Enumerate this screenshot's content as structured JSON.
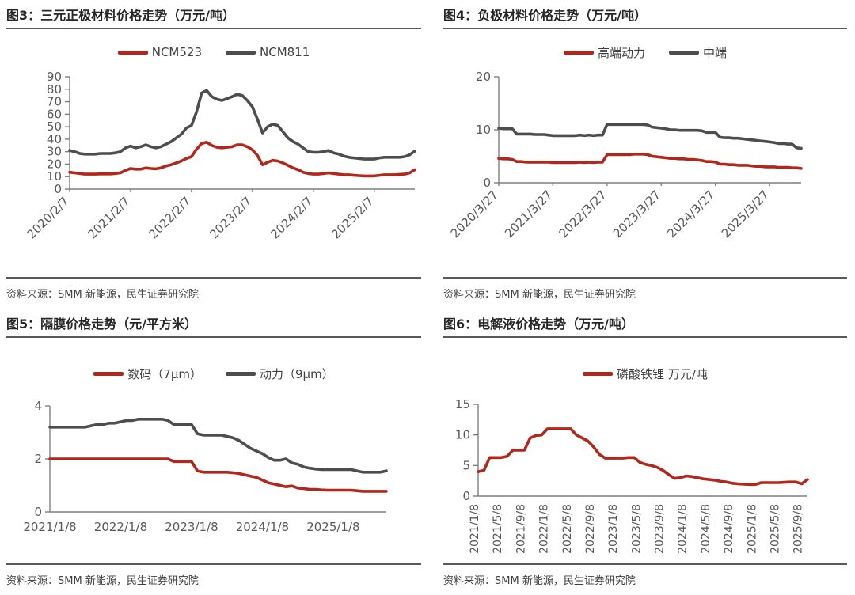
{
  "colors": {
    "red": "#B2271C",
    "gray": "#4D4D4D",
    "axis": "#7F7F7F",
    "tick_text": "#595959",
    "title_text": "#262626",
    "rule": "#595959"
  },
  "panels": [
    {
      "title": "图3：三元正极材料价格走势（万元/吨）",
      "source": "资料来源：SMM 新能源，民生证券研究院"
    },
    {
      "title": "图4：负极材料价格走势（万元/吨）",
      "source": "资料来源：SMM 新能源，民生证券研究院"
    },
    {
      "title": "图5：隔膜价格走势（元/平方米）",
      "source": "资料来源：SMM 新能源，民生证券研究院"
    },
    {
      "title": "图6：电解液价格走势（万元/吨）",
      "source": "资料来源：SMM 新能源，民生证券研究院"
    }
  ],
  "chart_data": [
    {
      "type": "line",
      "title": "图3：三元正极材料价格走势（万元/吨）",
      "xlabel": "",
      "ylabel": "万元/吨",
      "ylim": [
        0,
        90
      ],
      "yticks": [
        0,
        10,
        20,
        30,
        40,
        50,
        60,
        70,
        80,
        90
      ],
      "x_tick_labels": [
        "2020/2/7",
        "2021/2/7",
        "2022/2/7",
        "2023/2/7",
        "2024/2/7",
        "2025/2/7"
      ],
      "x_tick_every": 12,
      "x_tick_marks": true,
      "legend_position": "top",
      "grid": false,
      "series": [
        {
          "name": "NCM523",
          "color_key": "red",
          "values": [
            13.5,
            13,
            12.5,
            12,
            12,
            12,
            12.2,
            12.2,
            12.2,
            12.5,
            13,
            15,
            16.5,
            16,
            16,
            17,
            16.5,
            16.2,
            17,
            18.5,
            19.5,
            21,
            22.5,
            24.5,
            26,
            32,
            36.5,
            37.5,
            35,
            33.5,
            33,
            33.5,
            34,
            35.5,
            35.5,
            34,
            31.5,
            27,
            19.5,
            21.5,
            23,
            22.5,
            21,
            19,
            17,
            15.5,
            13.5,
            12.5,
            12,
            12,
            12.5,
            13,
            12.5,
            12,
            11.5,
            11.5,
            11,
            10.8,
            10.5,
            10.5,
            10.5,
            11,
            11.5,
            11.5,
            11.5,
            11.8,
            12,
            13,
            15.5
          ]
        },
        {
          "name": "NCM811",
          "color_key": "gray",
          "values": [
            31,
            30,
            28.5,
            28,
            28,
            28,
            28.5,
            28.5,
            28.5,
            29,
            30,
            33,
            34.5,
            33,
            34,
            35.5,
            34,
            33,
            34,
            36,
            38,
            41,
            44,
            49,
            51,
            62,
            77,
            79,
            74,
            72,
            71,
            72.5,
            74,
            76,
            75,
            71,
            66,
            56,
            45,
            50,
            52,
            51,
            46,
            41,
            38,
            36,
            33,
            30,
            29.5,
            29.5,
            30,
            31,
            29,
            28,
            26.5,
            25.5,
            25,
            24.5,
            24,
            24,
            24,
            25,
            25.5,
            25.5,
            25.5,
            25.5,
            26,
            27.5,
            30.5
          ]
        }
      ]
    },
    {
      "type": "line",
      "title": "图4：负极材料价格走势（万元/吨）",
      "xlabel": "",
      "ylabel": "万元/吨",
      "ylim": [
        0,
        20
      ],
      "yticks": [
        0,
        10,
        20
      ],
      "x_tick_labels": [
        "2020/3/27",
        "2021/3/27",
        "2022/3/27",
        "2023/3/27",
        "2024/3/27",
        "2025/3/27"
      ],
      "x_tick_every": 12,
      "x_tick_marks": true,
      "legend_position": "top",
      "grid": false,
      "series": [
        {
          "name": "高端动力",
          "color_key": "red",
          "values": [
            4.6,
            4.5,
            4.5,
            4.4,
            4.0,
            4.0,
            3.9,
            3.9,
            3.9,
            3.9,
            3.9,
            3.9,
            3.8,
            3.8,
            3.8,
            3.8,
            3.8,
            3.8,
            3.9,
            3.8,
            3.9,
            3.8,
            3.9,
            3.9,
            5.3,
            5.3,
            5.3,
            5.3,
            5.3,
            5.3,
            5.4,
            5.4,
            5.4,
            5.3,
            5.0,
            4.9,
            4.8,
            4.7,
            4.6,
            4.6,
            4.5,
            4.5,
            4.4,
            4.4,
            4.3,
            4.2,
            4.0,
            4.0,
            3.9,
            3.5,
            3.5,
            3.4,
            3.4,
            3.3,
            3.3,
            3.3,
            3.2,
            3.1,
            3.1,
            3.0,
            3.0,
            3.0,
            2.9,
            2.9,
            2.9,
            2.8,
            2.8,
            2.7
          ]
        },
        {
          "name": "中端",
          "color_key": "gray",
          "values": [
            10.3,
            10.2,
            10.2,
            10.2,
            9.2,
            9.2,
            9.2,
            9.2,
            9.1,
            9.1,
            9.1,
            9.0,
            8.9,
            8.9,
            8.9,
            8.9,
            8.9,
            8.9,
            9.0,
            8.9,
            9.0,
            8.9,
            9.0,
            9.0,
            11.0,
            11.0,
            11.0,
            11.0,
            11.0,
            11.0,
            11.0,
            11.0,
            11.0,
            10.9,
            10.5,
            10.4,
            10.3,
            10.2,
            10.0,
            10.0,
            9.9,
            9.9,
            9.9,
            9.9,
            9.9,
            9.8,
            9.5,
            9.5,
            9.5,
            8.6,
            8.5,
            8.5,
            8.4,
            8.4,
            8.3,
            8.2,
            8.1,
            8.0,
            7.9,
            7.8,
            7.7,
            7.6,
            7.4,
            7.4,
            7.3,
            7.3,
            6.6,
            6.5
          ]
        }
      ]
    },
    {
      "type": "line",
      "title": "图5：隔膜价格走势（元/平方米）",
      "xlabel": "",
      "ylabel": "元/平方米",
      "ylim": [
        0,
        4
      ],
      "yticks": [
        0,
        2,
        4
      ],
      "x_tick_labels": [
        "2021/1/8",
        "2022/1/8",
        "2023/1/8",
        "2024/1/8",
        "2025/1/8"
      ],
      "x_tick_every": 12,
      "x_tick_marks": false,
      "legend_position": "top",
      "grid": false,
      "series": [
        {
          "name": "数码（7μm）",
          "color_key": "red",
          "values": [
            2,
            2,
            2,
            2,
            2,
            2,
            2,
            2,
            2,
            2,
            2,
            2,
            2,
            2,
            2,
            2,
            2,
            2,
            2,
            2,
            2,
            1.9,
            1.9,
            1.9,
            1.9,
            1.55,
            1.5,
            1.5,
            1.5,
            1.5,
            1.5,
            1.48,
            1.45,
            1.4,
            1.35,
            1.3,
            1.2,
            1.1,
            1.05,
            1.0,
            0.95,
            0.98,
            0.9,
            0.88,
            0.85,
            0.85,
            0.83,
            0.82,
            0.82,
            0.82,
            0.82,
            0.82,
            0.8,
            0.78,
            0.78,
            0.78,
            0.78,
            0.78
          ]
        },
        {
          "name": "动力（9μm）",
          "color_key": "gray",
          "values": [
            3.2,
            3.2,
            3.2,
            3.2,
            3.2,
            3.2,
            3.2,
            3.25,
            3.3,
            3.3,
            3.35,
            3.35,
            3.4,
            3.45,
            3.45,
            3.5,
            3.5,
            3.5,
            3.5,
            3.5,
            3.45,
            3.3,
            3.3,
            3.3,
            3.3,
            2.95,
            2.9,
            2.9,
            2.9,
            2.9,
            2.85,
            2.8,
            2.7,
            2.55,
            2.4,
            2.3,
            2.2,
            2.05,
            1.95,
            1.95,
            2.0,
            1.85,
            1.8,
            1.7,
            1.65,
            1.62,
            1.6,
            1.6,
            1.6,
            1.6,
            1.6,
            1.6,
            1.55,
            1.5,
            1.5,
            1.5,
            1.5,
            1.55
          ]
        }
      ]
    },
    {
      "type": "line",
      "title": "图6：电解液价格走势（万元/吨）",
      "xlabel": "",
      "ylabel": "万元/吨",
      "ylim": [
        0,
        15
      ],
      "yticks": [
        0,
        5,
        10,
        15
      ],
      "x_tick_labels": [
        "2021/1/8",
        "2021/5/8",
        "2021/9/8",
        "2022/1/8",
        "2022/5/8",
        "2022/9/8",
        "2023/1/8",
        "2023/5/8",
        "2023/9/8",
        "2024/1/8",
        "2024/5/8",
        "2024/9/8",
        "2025/1/8",
        "2025/5/8",
        "2025/9/8"
      ],
      "x_tick_every": 4,
      "x_tick_marks": false,
      "legend_position": "top",
      "grid": false,
      "series": [
        {
          "name": "磷酸铁锂 万元/吨",
          "color_key": "red",
          "values": [
            4.0,
            4.2,
            6.3,
            6.3,
            6.3,
            6.5,
            7.5,
            7.5,
            7.5,
            9.5,
            9.9,
            10.0,
            11.0,
            11.0,
            11.0,
            11.0,
            11.0,
            10.0,
            9.5,
            9.0,
            8.0,
            6.8,
            6.2,
            6.2,
            6.2,
            6.2,
            6.3,
            6.3,
            5.5,
            5.2,
            5.0,
            4.7,
            4.2,
            3.5,
            2.9,
            3.0,
            3.3,
            3.2,
            3.0,
            2.8,
            2.7,
            2.6,
            2.4,
            2.3,
            2.1,
            2.0,
            1.95,
            1.9,
            1.9,
            2.2,
            2.2,
            2.2,
            2.2,
            2.25,
            2.3,
            2.3,
            2.0,
            2.7
          ]
        }
      ]
    }
  ]
}
